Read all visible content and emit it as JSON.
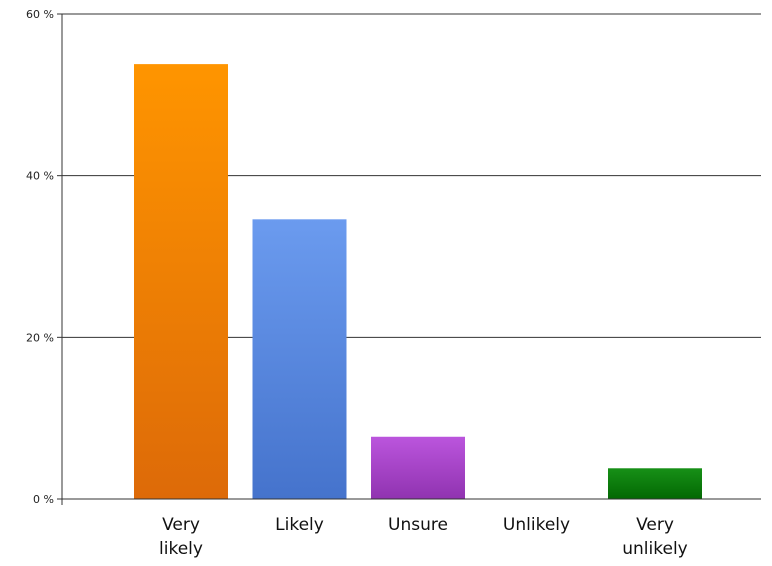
{
  "chart_data": {
    "type": "bar",
    "categories": [
      [
        "Very",
        "likely"
      ],
      [
        "Likely"
      ],
      [
        "Unsure"
      ],
      [
        "Unlikely"
      ],
      [
        "Very",
        "unlikely"
      ]
    ],
    "values": [
      53.8,
      34.6,
      7.7,
      0,
      3.8
    ],
    "colors": [
      [
        "#ff9500",
        "#dd6a08"
      ],
      [
        "#6b9bef",
        "#4573cc"
      ],
      [
        "#bb55dd",
        "#9033b0"
      ],
      [
        "#cccccc",
        "#aaaaaa"
      ],
      [
        "#179017",
        "#036803"
      ]
    ],
    "ylim": [
      0,
      60
    ],
    "yticks": [
      0,
      20,
      40,
      60
    ],
    "ytick_labels": [
      "0 %",
      "20 %",
      "40 %",
      "60 %"
    ],
    "grid": true,
    "legend": "none"
  }
}
